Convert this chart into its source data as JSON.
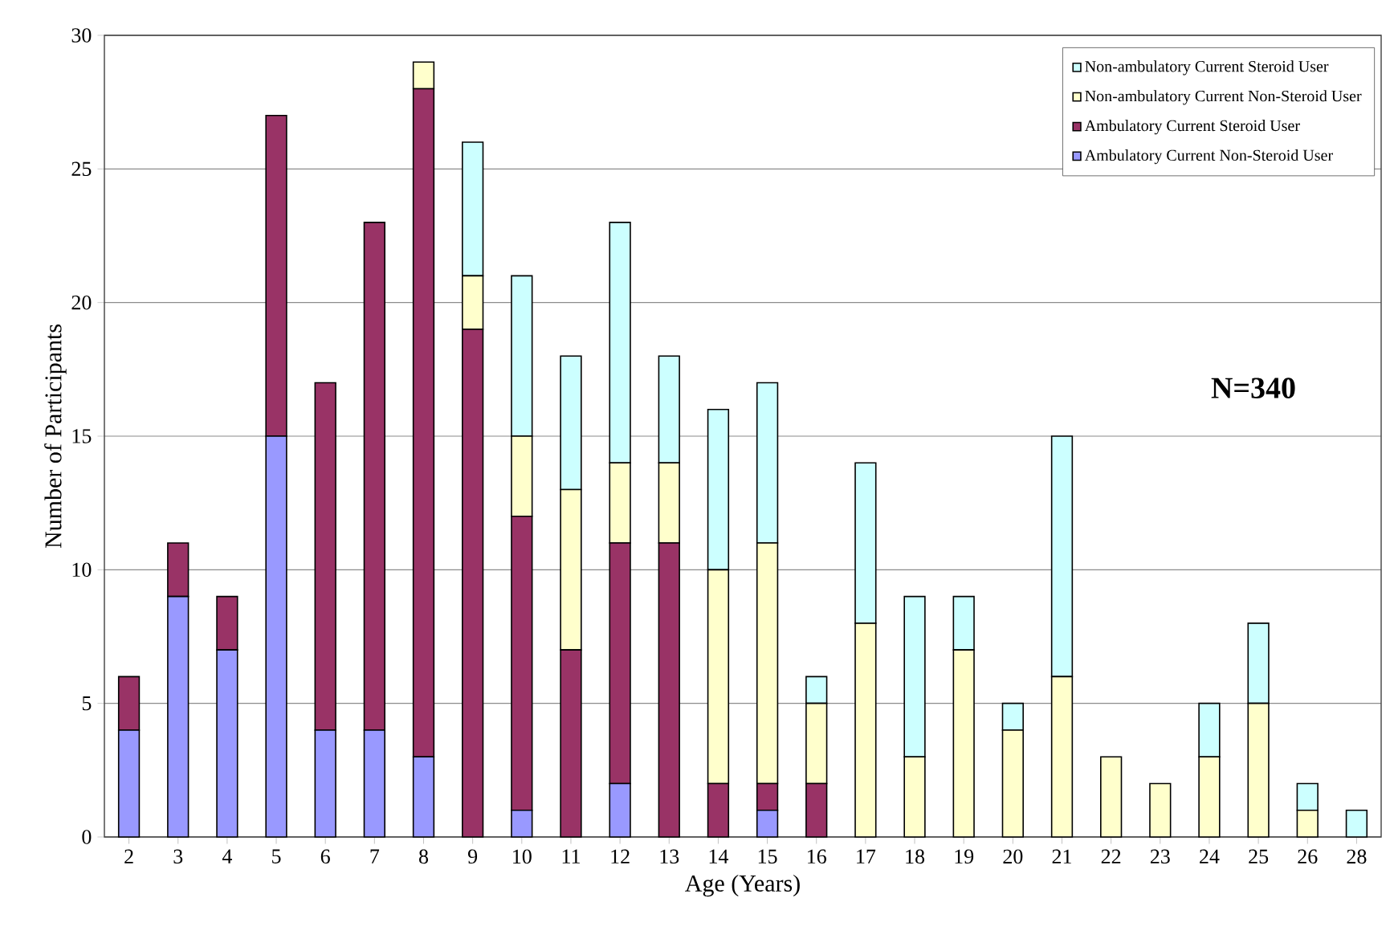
{
  "chart_data": {
    "type": "bar",
    "stacked": true,
    "xlabel": "Age (Years)",
    "ylabel": "Number of Participants",
    "categories": [
      "2",
      "3",
      "4",
      "5",
      "6",
      "7",
      "8",
      "9",
      "10",
      "11",
      "12",
      "13",
      "14",
      "15",
      "16",
      "17",
      "18",
      "19",
      "20",
      "21",
      "22",
      "23",
      "24",
      "25",
      "26",
      "28"
    ],
    "series": [
      {
        "name": "Ambulatory Current Non-Steroid User",
        "color": "#9999ff",
        "values": [
          4,
          9,
          7,
          15,
          4,
          4,
          3,
          null,
          1,
          null,
          2,
          null,
          null,
          1,
          null,
          null,
          null,
          null,
          null,
          null,
          null,
          null,
          null,
          null,
          null,
          null
        ]
      },
      {
        "name": "Ambulatory Current Steroid User",
        "color": "#993366",
        "values": [
          2,
          2,
          2,
          12,
          13,
          19,
          25,
          19,
          11,
          7,
          9,
          11,
          2,
          1,
          2,
          null,
          null,
          null,
          null,
          null,
          null,
          null,
          null,
          null,
          null,
          null
        ]
      },
      {
        "name": "Non-ambulatory Current Non-Steroid User",
        "color": "#ffffcc",
        "values": [
          null,
          null,
          null,
          null,
          null,
          null,
          1,
          2,
          3,
          6,
          3,
          3,
          8,
          9,
          3,
          8,
          3,
          7,
          4,
          6,
          3,
          2,
          3,
          5,
          1,
          null
        ]
      },
      {
        "name": "Non-ambulatory Current Steroid User",
        "color": "#ccffff",
        "values": [
          null,
          null,
          null,
          null,
          null,
          null,
          null,
          5,
          6,
          5,
          9,
          4,
          6,
          6,
          1,
          6,
          6,
          2,
          1,
          9,
          null,
          null,
          2,
          3,
          1,
          1
        ]
      }
    ],
    "ylim": [
      0,
      30
    ],
    "yticks": [
      0,
      5,
      10,
      15,
      20,
      25,
      30
    ],
    "grid": "y",
    "legend": "top right",
    "annotations": [
      "N=340"
    ]
  }
}
